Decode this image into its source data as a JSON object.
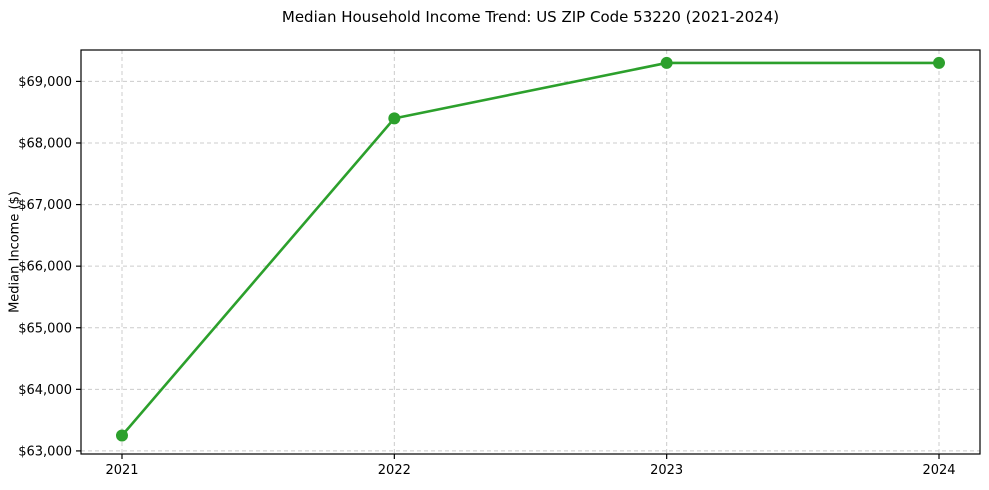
{
  "figure": {
    "background_color": "#ffffff"
  },
  "chart_data": {
    "type": "line",
    "title": "Median Household Income Trend: US ZIP Code 53220 (2021-2024)",
    "xlabel": "",
    "ylabel": "Median Income ($)",
    "categories": [
      "2021",
      "2022",
      "2023",
      "2024"
    ],
    "series": [
      {
        "values": [
          63250,
          68400,
          69300,
          69300
        ],
        "color": "#2ca02c",
        "marker": "circle",
        "line_width": 2.6,
        "marker_radius": 6
      }
    ],
    "yticks": [
      63000,
      64000,
      65000,
      66000,
      67000,
      68000,
      69000
    ],
    "ytick_labels": [
      "$63,000",
      "$64,000",
      "$65,000",
      "$66,000",
      "$67,000",
      "$68,000",
      "$69,000"
    ],
    "ylim": [
      62950,
      69510
    ],
    "grid": {
      "visible": true,
      "style": "dashed",
      "color": "#cccccc",
      "axes": "both"
    },
    "legend": "none",
    "axis_color": "#000000"
  }
}
